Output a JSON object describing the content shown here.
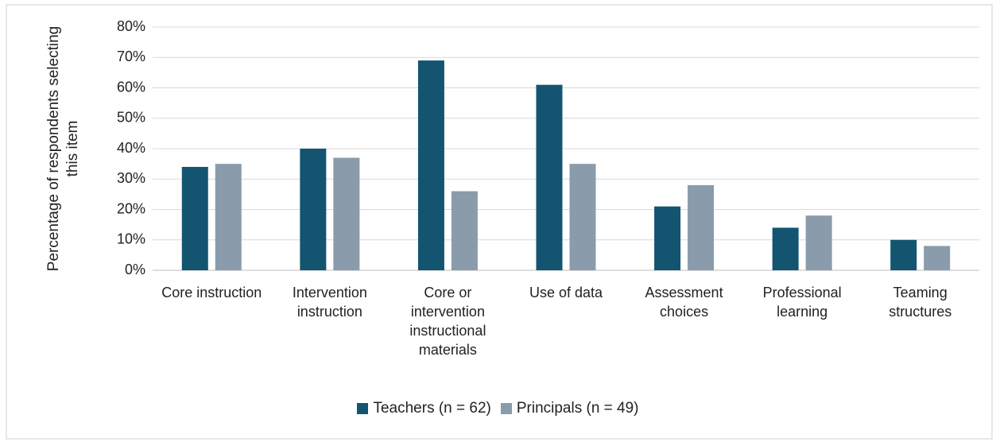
{
  "chart_data": {
    "type": "bar",
    "y_label": "Percentage of respondents selecting this item",
    "categories": [
      "Core instruction",
      "Intervention instruction",
      "Core or intervention instructional materials",
      "Use of data",
      "Assessment choices",
      "Professional learning",
      "Teaming structures"
    ],
    "series": [
      {
        "name": "Teachers (n = 62)",
        "color": "#135570",
        "values": [
          34,
          40,
          69,
          61,
          21,
          14,
          10
        ]
      },
      {
        "name": "Principals (n = 49)",
        "color": "#8a9bab",
        "values": [
          35,
          37,
          26,
          35,
          28,
          18,
          8
        ]
      }
    ],
    "ylim": [
      0,
      80
    ],
    "yticks": [
      {
        "value": 0,
        "label": "0%"
      },
      {
        "value": 10,
        "label": "10%"
      },
      {
        "value": 20,
        "label": "20%"
      },
      {
        "value": 30,
        "label": "30%"
      },
      {
        "value": 40,
        "label": "40%"
      },
      {
        "value": 50,
        "label": "50%"
      },
      {
        "value": 60,
        "label": "60%"
      },
      {
        "value": 70,
        "label": "70%"
      },
      {
        "value": 80,
        "label": "80%"
      }
    ],
    "grid": true,
    "legend": "bottom"
  }
}
